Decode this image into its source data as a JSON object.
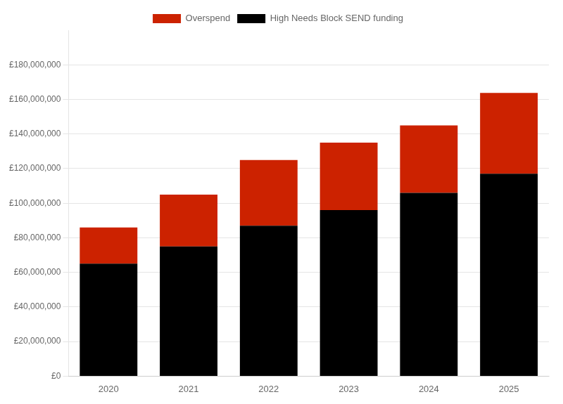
{
  "chart_data": {
    "type": "bar",
    "categories": [
      "2020",
      "2021",
      "2022",
      "2023",
      "2024",
      "2025"
    ],
    "series": [
      {
        "name": "High Needs Block SEND funding",
        "color": "#000000",
        "values": [
          65000000,
          75000000,
          87000000,
          96000000,
          106000000,
          117000000
        ]
      },
      {
        "name": "Overspend",
        "color": "#cc2200",
        "values": [
          21000000,
          30000000,
          38000000,
          39000000,
          39000000,
          46700000
        ]
      }
    ],
    "stacked": true,
    "ylim": [
      0,
      200000000
    ],
    "yticks": [
      {
        "value": 0,
        "label": "£0"
      },
      {
        "value": 20000000,
        "label": "£20,000,000"
      },
      {
        "value": 40000000,
        "label": "£40,000,000"
      },
      {
        "value": 60000000,
        "label": "£60,000,000"
      },
      {
        "value": 80000000,
        "label": "£80,000,000"
      },
      {
        "value": 100000000,
        "label": "£100,000,000"
      },
      {
        "value": 120000000,
        "label": "£120,000,000"
      },
      {
        "value": 140000000,
        "label": "£140,000,000"
      },
      {
        "value": 160000000,
        "label": "£160,000,000"
      },
      {
        "value": 180000000,
        "label": "£180,000,000"
      }
    ],
    "grid": true,
    "legend": "top"
  }
}
